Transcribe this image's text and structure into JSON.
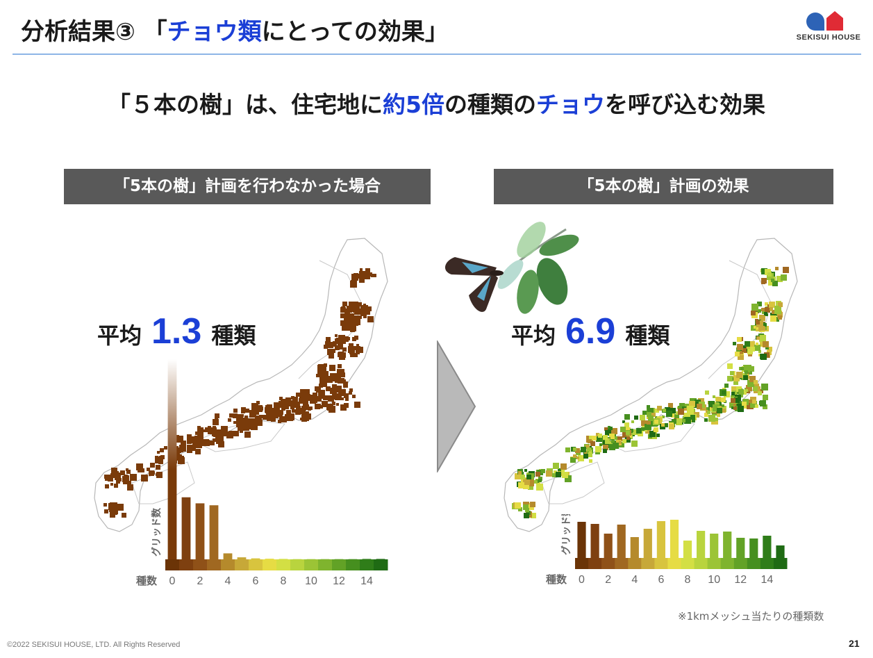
{
  "header": {
    "title_prefix": "分析結果③ 「",
    "title_highlight": "チョウ類",
    "title_suffix": "にとっての効果」",
    "logo_text": "SEKISUI HOUSE"
  },
  "headline": {
    "part1": "「５本の樹」は、住宅地に",
    "highlight1": "約5倍",
    "part2": "の種類の",
    "highlight2": "チョウ",
    "part3": "を呼び込む効果"
  },
  "panels": [
    {
      "heading": "「5本の樹」計画を行わなかった場合",
      "avg_label": "平均",
      "avg_value": "1.3",
      "avg_unit": "種類",
      "map_color": "#7a3b0a"
    },
    {
      "heading": "「5本の樹」計画の効果",
      "avg_label": "平均",
      "avg_value": "6.9",
      "avg_unit": "種類",
      "map_color": "#4f8a1f"
    }
  ],
  "chart_data": [
    {
      "type": "bar",
      "categories": [
        "0",
        "1",
        "2",
        "3",
        "4",
        "5",
        "6",
        "7",
        "8",
        "9",
        "10",
        "11",
        "12",
        "13",
        "14",
        "15"
      ],
      "values": [
        100,
        31,
        28,
        27,
        3,
        1,
        0.5,
        0.3,
        0.2,
        0.1,
        0.1,
        0.1,
        0.1,
        0.1,
        0.2,
        0.2
      ],
      "xlabel": "種数",
      "ylabel": "グリッド数",
      "xticks": [
        "0",
        "2",
        "4",
        "6",
        "8",
        "10",
        "12",
        "14"
      ]
    },
    {
      "type": "bar",
      "categories": [
        "0",
        "1",
        "2",
        "3",
        "4",
        "5",
        "6",
        "7",
        "8",
        "9",
        "10",
        "11",
        "12",
        "13",
        "14",
        "15"
      ],
      "values": [
        52,
        49,
        35,
        48,
        30,
        42,
        53,
        55,
        25,
        39,
        35,
        38,
        29,
        28,
        32,
        18
      ],
      "xlabel": "種数",
      "ylabel": "グリッド数",
      "xticks": [
        "0",
        "2",
        "4",
        "6",
        "8",
        "10",
        "12",
        "14"
      ]
    }
  ],
  "footnote": "※1kmメッシュ当たりの種類数",
  "footer": {
    "copyright": "©2022 SEKISUI HOUSE, LTD. All Rights Reserved",
    "page": "21"
  },
  "colors": {
    "highlight": "#1b3fd6",
    "panel_header": "#595959",
    "rule": "#8db5e6"
  }
}
